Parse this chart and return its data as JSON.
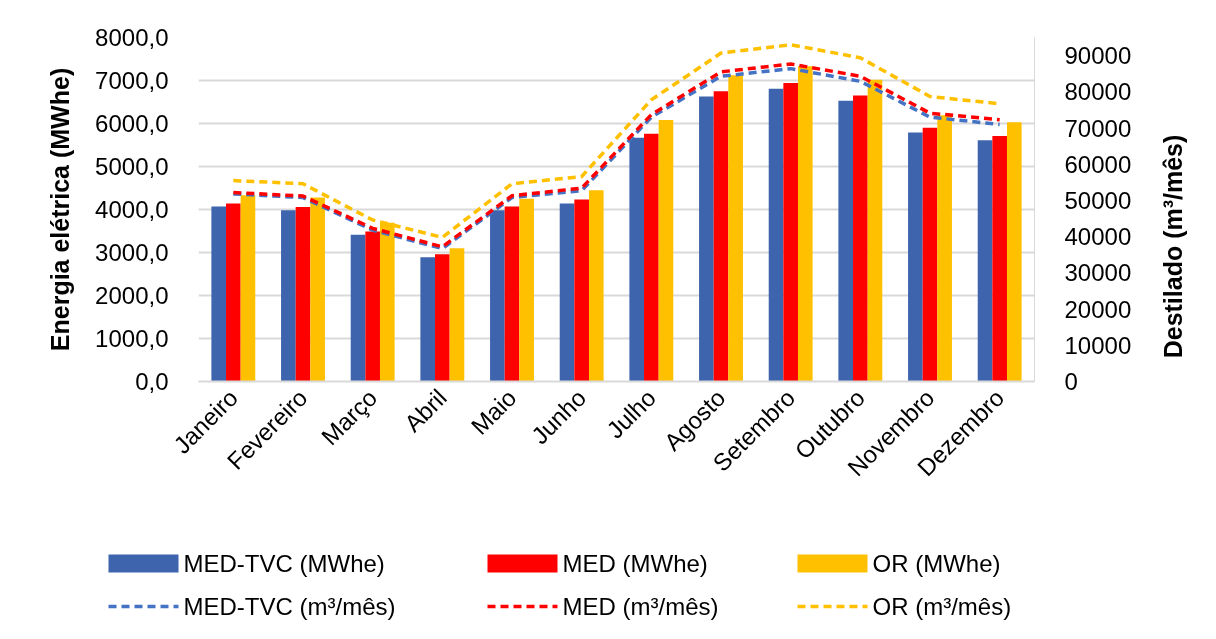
{
  "chart_data": {
    "type": "bar",
    "categories": [
      "Janeiro",
      "Fevereiro",
      "Março",
      "Abril",
      "Maio",
      "Junho",
      "Julho",
      "Agosto",
      "Setembro",
      "Outubro",
      "Novembro",
      "Dezembro"
    ],
    "ylabel": "Energia elétrica (MWhe)",
    "y2label": "Destilado (m³/mês)",
    "ylim": [
      0,
      8000
    ],
    "yticks": [
      {
        "value": 0,
        "label": "0,0"
      },
      {
        "value": 1000,
        "label": "1000,0"
      },
      {
        "value": 2000,
        "label": "2000,0"
      },
      {
        "value": 3000,
        "label": "3000,0"
      },
      {
        "value": 4000,
        "label": "4000,0"
      },
      {
        "value": 5000,
        "label": "5000,0"
      },
      {
        "value": 6000,
        "label": "6000,0"
      },
      {
        "value": 7000,
        "label": "7000,0"
      },
      {
        "value": 8000,
        "label": "8000,0"
      }
    ],
    "y2lim": [
      0,
      95000
    ],
    "y2ticks": [
      0,
      10000,
      20000,
      30000,
      40000,
      50000,
      60000,
      70000,
      80000,
      90000
    ],
    "grid": "y",
    "legend": "bottom",
    "series": [
      {
        "name": "MED-TVC (MWhe)",
        "color": "#3d64ad",
        "values": [
          4070,
          3980,
          3410,
          2890,
          3980,
          4140,
          5670,
          6630,
          6810,
          6530,
          5790,
          5610
        ]
      },
      {
        "name": "MED (MWhe)",
        "color": "#ff0000",
        "values": [
          4140,
          4060,
          3490,
          2960,
          4070,
          4230,
          5760,
          6750,
          6940,
          6650,
          5900,
          5710
        ]
      },
      {
        "name": "OR (MWhe)",
        "color": "#ffc000",
        "values": [
          4330,
          4280,
          3690,
          3100,
          4250,
          4450,
          6080,
          7120,
          7330,
          7020,
          6190,
          6030
        ]
      },
      {
        "name": "MED-TVC (m³/mês)",
        "type": "line",
        "axis": "y2",
        "line_style": "dashed",
        "color": "#4472c4",
        "values": [
          51800,
          50800,
          41800,
          36700,
          50800,
          52700,
          73000,
          84300,
          86400,
          82900,
          73000,
          71000
        ]
      },
      {
        "name": "MED (m³/mês)",
        "type": "line",
        "axis": "y2",
        "line_style": "dashed",
        "color": "#ff0000",
        "values": [
          52200,
          51200,
          42300,
          37200,
          51300,
          53400,
          73700,
          85500,
          87700,
          84300,
          74100,
          72300
        ]
      },
      {
        "name": "OR (m³/mês)",
        "type": "line",
        "axis": "y2",
        "line_style": "dashed",
        "color": "#ffc000",
        "values": [
          55500,
          54600,
          44600,
          39800,
          54600,
          56600,
          77800,
          90700,
          93000,
          89400,
          78700,
          76700
        ]
      }
    ]
  }
}
